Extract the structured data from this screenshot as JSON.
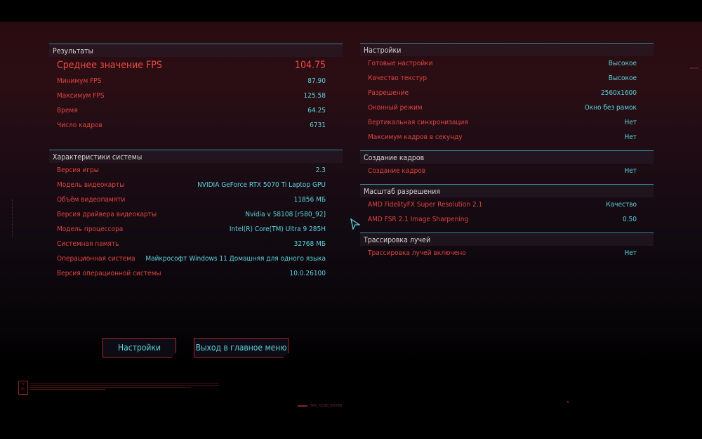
{
  "results": {
    "title": "Результаты",
    "avg_fps": {
      "label": "Среднее значение FPS",
      "value": "104.75"
    },
    "rows": [
      {
        "label": "Минимум FPS",
        "value": "87.90"
      },
      {
        "label": "Максимум FPS",
        "value": "125.58"
      },
      {
        "label": "Время",
        "value": "64.25"
      },
      {
        "label": "Число кадров",
        "value": "6731"
      }
    ]
  },
  "system": {
    "title": "Характеристики системы",
    "rows": [
      {
        "label": "Версия игры",
        "value": "2.3"
      },
      {
        "label": "Модель видеокарты",
        "value": "NVIDIA GeForce RTX 5070 Ti Laptop GPU"
      },
      {
        "label": "Объём видеопамяти",
        "value": "11856 МБ"
      },
      {
        "label": "Версия драйвера видеокарты",
        "value": "Nvidia v 58108 [r580_92]"
      },
      {
        "label": "Модель процессора",
        "value": "Intel(R) Core(TM) Ultra 9 285H"
      },
      {
        "label": "Системная память",
        "value": "32768 МБ"
      },
      {
        "label": "Операционная система",
        "value": "Майкрософт Windows 11 Домашняя для одного языка"
      },
      {
        "label": "Версия операционной системы",
        "value": "10.0.26100"
      }
    ]
  },
  "settings": {
    "title": "Настройки",
    "rows": [
      {
        "label": "Готовые настройки",
        "value": "Высокое"
      },
      {
        "label": "Качество текстур",
        "value": "Высокое"
      },
      {
        "label": "Разрешение",
        "value": "2560x1600"
      },
      {
        "label": "Оконный режим",
        "value": "Окно без рамок"
      },
      {
        "label": "Вертикальная синхронизация",
        "value": "Нет"
      },
      {
        "label": "Максимум кадров в секунду",
        "value": "Нет"
      }
    ]
  },
  "frame_gen": {
    "title": "Создание кадров",
    "rows": [
      {
        "label": "Создание кадров",
        "value": "Нет"
      }
    ]
  },
  "scaling": {
    "title": "Масштаб разрешения",
    "rows": [
      {
        "label": "AMD FidelityFX Super Resolution 2.1",
        "value": "Качество"
      },
      {
        "label": "AMD FSR 2.1 Image Sharpening",
        "value": "0.50"
      }
    ]
  },
  "raytracing": {
    "title": "Трассировка лучей",
    "rows": [
      {
        "label": "Трассировка лучей включено",
        "value": "Нет"
      }
    ]
  },
  "buttons": {
    "settings": "Настройки",
    "exit": "Выход в главное меню"
  },
  "footer": {
    "logo": "V 85",
    "code": "TRN_TLCAB_800095"
  },
  "colors": {
    "label": "#e2443f",
    "value": "#5cd3dc",
    "divider": "#2f8c93",
    "button_border": "#a8282a"
  }
}
